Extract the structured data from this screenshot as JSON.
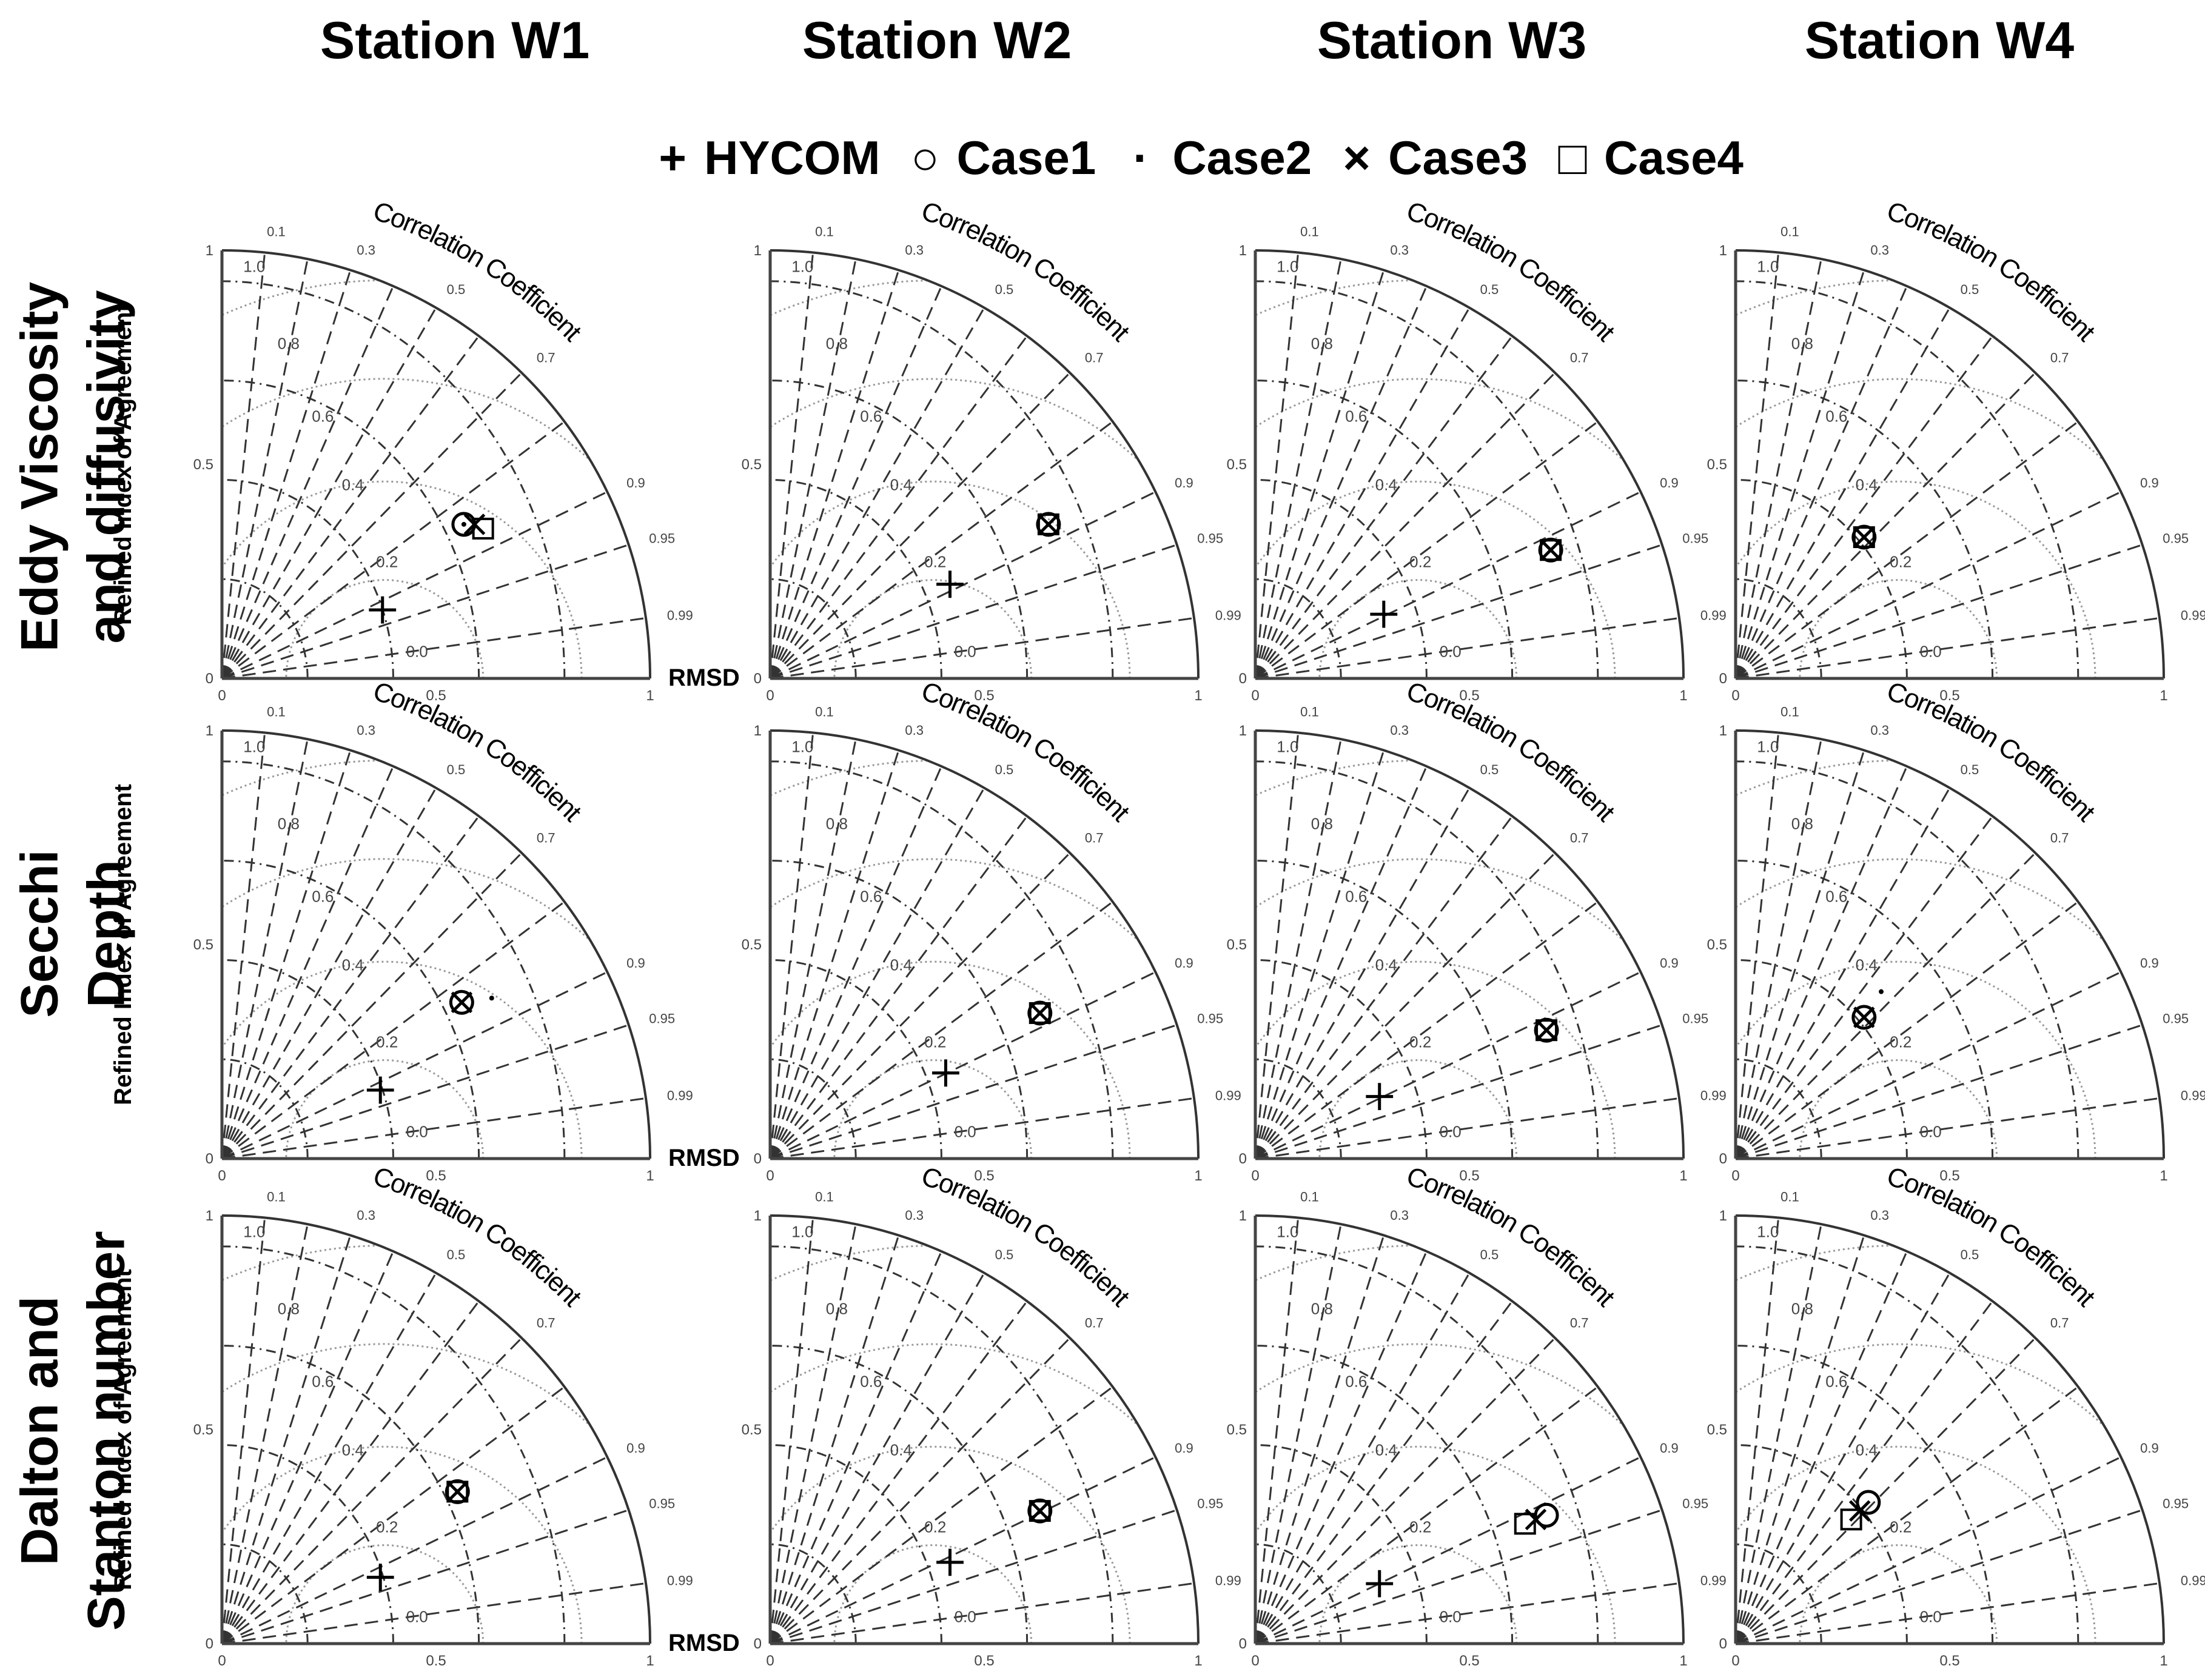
{
  "stations": [
    "Station W1",
    "Station W2",
    "Station W3",
    "Station W4"
  ],
  "rows": [
    {
      "line1": "Eddy Viscosity",
      "line2": "and diffusivity"
    },
    {
      "line1": "Secchi",
      "line2": "Depth"
    },
    {
      "line1": "Dalton and",
      "line2": "Stanton number"
    }
  ],
  "legend": [
    {
      "symbol": "+",
      "label": "HYCOM",
      "marker": "plus"
    },
    {
      "symbol": "○",
      "label": "Case1",
      "marker": "circle"
    },
    {
      "symbol": "·",
      "label": "Case2",
      "marker": "dot"
    },
    {
      "symbol": "×",
      "label": "Case3",
      "marker": "cross"
    },
    {
      "symbol": "□",
      "label": "Case4",
      "marker": "square"
    }
  ],
  "axes": {
    "ylabel": "Refined Index of Agreement",
    "xlabel": "RMSD",
    "arc_label": "Correlation Coefficient",
    "ticks": [
      "0",
      "0.5",
      "1"
    ],
    "correlation_labels": [
      "0.1",
      "0.3",
      "0.5",
      "0.7",
      "0.9",
      "0.95",
      "0.99"
    ],
    "index_labels": [
      "1.0",
      "0.8",
      "0.6",
      "0.4",
      "0.2",
      "0.0"
    ]
  },
  "chart_data": [
    {
      "type": "scatter",
      "row": "Eddy Viscosity and diffusivity",
      "station": "Station W1",
      "xlim": [
        0,
        1
      ],
      "ylim": [
        0,
        1
      ],
      "points": {
        "HYCOM": [
          0.375,
          0.16
        ],
        "Case1": [
          0.565,
          0.36
        ],
        "Case2": [
          0.565,
          0.36
        ],
        "Case3": [
          0.59,
          0.36
        ],
        "Case4": [
          0.61,
          0.35
        ]
      }
    },
    {
      "type": "scatter",
      "row": "Eddy Viscosity and diffusivity",
      "station": "Station W2",
      "xlim": [
        0,
        1
      ],
      "ylim": [
        0,
        1
      ],
      "points": {
        "HYCOM": [
          0.42,
          0.22
        ],
        "Case1": [
          0.65,
          0.36
        ],
        "Case2": [
          0.65,
          0.36
        ],
        "Case3": [
          0.65,
          0.36
        ],
        "Case4": [
          0.65,
          0.36
        ]
      }
    },
    {
      "type": "scatter",
      "row": "Eddy Viscosity and diffusivity",
      "station": "Station W3",
      "xlim": [
        0,
        1
      ],
      "ylim": [
        0,
        1
      ],
      "points": {
        "HYCOM": [
          0.3,
          0.15
        ],
        "Case1": [
          0.69,
          0.3
        ],
        "Case2": [
          0.69,
          0.3
        ],
        "Case3": [
          0.69,
          0.3
        ],
        "Case4": [
          0.69,
          0.3
        ]
      }
    },
    {
      "type": "scatter",
      "row": "Eddy Viscosity and diffusivity",
      "station": "Station W4",
      "xlim": [
        0,
        1
      ],
      "ylim": [
        0,
        1
      ],
      "points": {
        "Case1": [
          0.3,
          0.33
        ],
        "Case2": [
          0.3,
          0.33
        ],
        "Case3": [
          0.3,
          0.33
        ],
        "Case4": [
          0.3,
          0.33
        ]
      }
    },
    {
      "type": "scatter",
      "row": "Secchi Depth",
      "station": "Station W1",
      "xlim": [
        0,
        1
      ],
      "ylim": [
        0,
        1
      ],
      "points": {
        "HYCOM": [
          0.37,
          0.16
        ],
        "Case1": [
          0.56,
          0.365
        ],
        "Case2": [
          0.63,
          0.375
        ],
        "Case3": [
          0.56,
          0.365
        ]
      }
    },
    {
      "type": "scatter",
      "row": "Secchi Depth",
      "station": "Station W2",
      "xlim": [
        0,
        1
      ],
      "ylim": [
        0,
        1
      ],
      "points": {
        "HYCOM": [
          0.41,
          0.2
        ],
        "Case1": [
          0.63,
          0.34
        ],
        "Case2": [
          0.63,
          0.34
        ],
        "Case3": [
          0.63,
          0.34
        ],
        "Case4": [
          0.63,
          0.34
        ]
      }
    },
    {
      "type": "scatter",
      "row": "Secchi Depth",
      "station": "Station W3",
      "xlim": [
        0,
        1
      ],
      "ylim": [
        0,
        1
      ],
      "points": {
        "HYCOM": [
          0.29,
          0.145
        ],
        "Case1": [
          0.68,
          0.3
        ],
        "Case3": [
          0.68,
          0.3
        ],
        "Case4": [
          0.68,
          0.3
        ]
      }
    },
    {
      "type": "scatter",
      "row": "Secchi Depth",
      "station": "Station W4",
      "xlim": [
        0,
        1
      ],
      "ylim": [
        0,
        1
      ],
      "points": {
        "Case1": [
          0.3,
          0.33
        ],
        "Case2": [
          0.34,
          0.39
        ],
        "Case3": [
          0.3,
          0.33
        ]
      }
    },
    {
      "type": "scatter",
      "row": "Dalton and Stanton number",
      "station": "Station W1",
      "xlim": [
        0,
        1
      ],
      "ylim": [
        0,
        1
      ],
      "points": {
        "HYCOM": [
          0.37,
          0.155
        ],
        "Case1": [
          0.55,
          0.355
        ],
        "Case2": [
          0.55,
          0.355
        ],
        "Case3": [
          0.55,
          0.355
        ],
        "Case4": [
          0.55,
          0.355
        ]
      }
    },
    {
      "type": "scatter",
      "row": "Dalton and Stanton number",
      "station": "Station W2",
      "xlim": [
        0,
        1
      ],
      "ylim": [
        0,
        1
      ],
      "points": {
        "HYCOM": [
          0.42,
          0.19
        ],
        "Case1": [
          0.63,
          0.31
        ],
        "Case2": [
          0.63,
          0.31
        ],
        "Case3": [
          0.63,
          0.31
        ],
        "Case4": [
          0.63,
          0.31
        ]
      }
    },
    {
      "type": "scatter",
      "row": "Dalton and Stanton number",
      "station": "Station W3",
      "xlim": [
        0,
        1
      ],
      "ylim": [
        0,
        1
      ],
      "points": {
        "HYCOM": [
          0.29,
          0.14
        ],
        "Case1": [
          0.68,
          0.3
        ],
        "Case3": [
          0.655,
          0.29
        ],
        "Case4": [
          0.63,
          0.28
        ]
      }
    },
    {
      "type": "scatter",
      "row": "Dalton and Stanton number",
      "station": "Station W4",
      "xlim": [
        0,
        1
      ],
      "ylim": [
        0,
        1
      ],
      "points": {
        "Case1": [
          0.31,
          0.33
        ],
        "Case3": [
          0.29,
          0.31
        ],
        "Case4": [
          0.27,
          0.29
        ]
      }
    }
  ]
}
